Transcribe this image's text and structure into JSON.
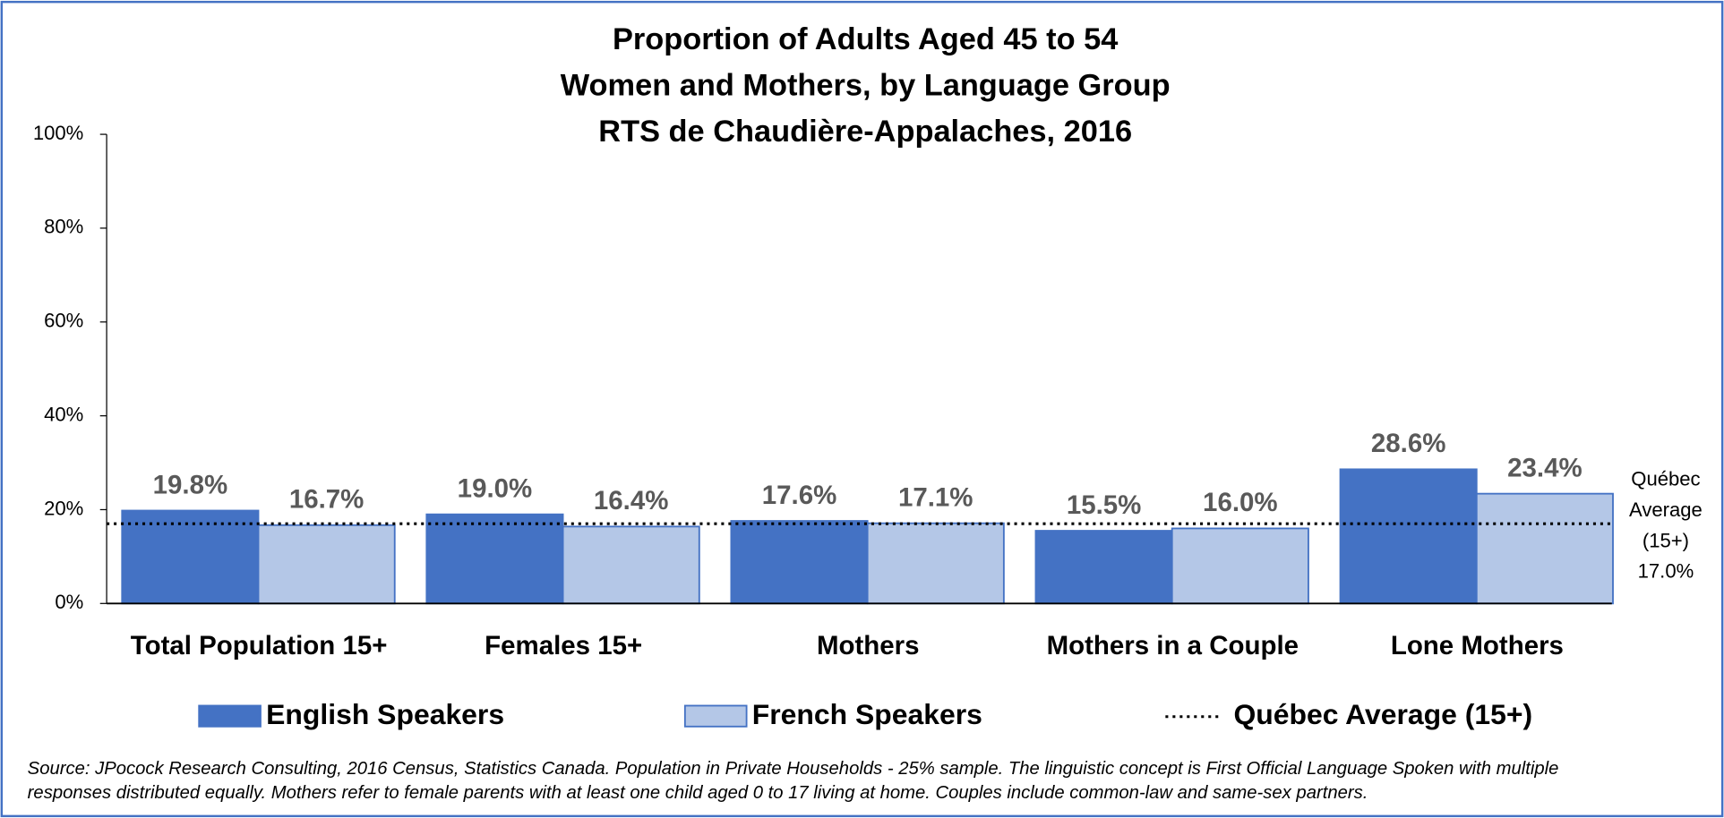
{
  "chart_data": {
    "type": "bar",
    "title": [
      "Proportion of Adults Aged 45 to 54",
      "Women and Mothers, by Language Group",
      "RTS de Chaudière-Appalaches, 2016"
    ],
    "categories": [
      "Total Population 15+",
      "Females 15+",
      "Mothers",
      "Mothers in a Couple",
      "Lone Mothers"
    ],
    "series": [
      {
        "name": "English Speakers",
        "color": "#4472c4",
        "values": [
          19.8,
          19.0,
          17.6,
          15.5,
          28.6
        ],
        "value_labels": [
          "19.8%",
          "19.0%",
          "17.6%",
          "15.5%",
          "28.6%"
        ]
      },
      {
        "name": "French Speakers",
        "color": "#b4c7e7",
        "values": [
          16.7,
          16.4,
          17.1,
          16.0,
          23.4
        ],
        "value_labels": [
          "16.7%",
          "16.4%",
          "17.1%",
          "16.0%",
          "23.4%"
        ]
      }
    ],
    "reference_line": {
      "name": "Québec Average (15+)",
      "value": 17.0,
      "label": [
        "Québec",
        "Average",
        "(15+)",
        "17.0%"
      ]
    },
    "ylim": [
      0,
      100
    ],
    "yticks": [
      {
        "value": 0,
        "label": "0%"
      },
      {
        "value": 20,
        "label": "20%"
      },
      {
        "value": 40,
        "label": "40%"
      },
      {
        "value": 60,
        "label": "60%"
      },
      {
        "value": 80,
        "label": "80%"
      },
      {
        "value": 100,
        "label": "100%"
      }
    ],
    "legend": "bottom",
    "source": [
      "Source: JPocock Research Consulting, 2016 Census, Statistics Canada. Population in Private Households - 25% sample. The linguistic concept is First Official Language Spoken with multiple",
      "responses distributed equally. Mothers refer to female parents with at least one child aged 0 to 17 living at home. Couples include common-law and same-sex partners."
    ]
  }
}
